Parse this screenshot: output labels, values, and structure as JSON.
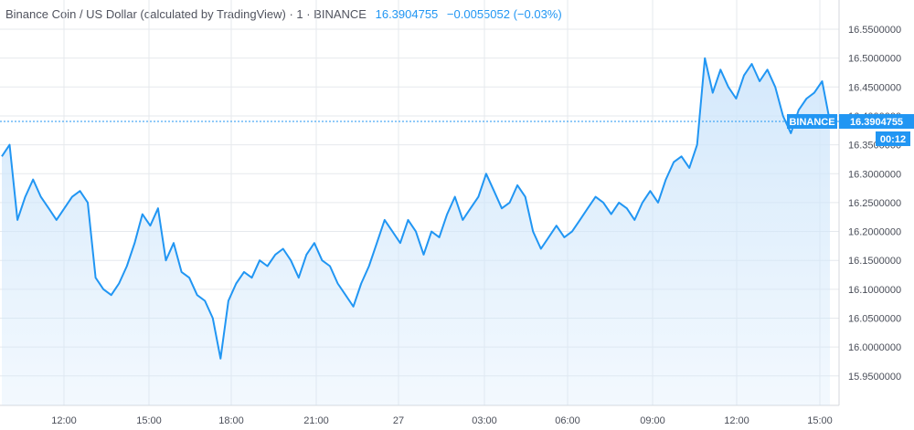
{
  "header": {
    "symbol": "Binance Coin / US Dollar (calculated by TradingView) · 1 · BINANCE",
    "last": "16.3904755",
    "change": "−0.0055052 (−0.03%)"
  },
  "price_tag": {
    "exchange": "BINANCE",
    "value": "16.3904755",
    "countdown": "00:12"
  },
  "colors": {
    "line": "#2196f3",
    "fill": "#cfe6fb",
    "tag": "#2196f3",
    "grid": "#e6e9ed"
  },
  "chart_data": {
    "type": "area",
    "x_ticks": [
      "12:00",
      "15:00",
      "18:00",
      "21:00",
      "27",
      "03:00",
      "06:00",
      "09:00",
      "12:00",
      "15:00"
    ],
    "y_ticks": [
      "16.5500000",
      "16.5000000",
      "16.4500000",
      "16.4000000",
      "16.3500000",
      "16.3000000",
      "16.2500000",
      "16.2000000",
      "16.1500000",
      "16.1000000",
      "16.0500000",
      "16.0000000",
      "15.9500000"
    ],
    "ylim": [
      15.925,
      16.575
    ],
    "last_value": 16.3904755,
    "series": [
      {
        "values": [
          16.33,
          16.35,
          16.22,
          16.26,
          16.29,
          16.26,
          16.24,
          16.22,
          16.24,
          16.26,
          16.27,
          16.25,
          16.12,
          16.1,
          16.09,
          16.11,
          16.14,
          16.18,
          16.23,
          16.21,
          16.24,
          16.15,
          16.18,
          16.13,
          16.12,
          16.09,
          16.08,
          16.05,
          15.98,
          16.08,
          16.11,
          16.13,
          16.12,
          16.15,
          16.14,
          16.16,
          16.17,
          16.15,
          16.12,
          16.16,
          16.18,
          16.15,
          16.14,
          16.11,
          16.09,
          16.07,
          16.11,
          16.14,
          16.18,
          16.22,
          16.2,
          16.18,
          16.22,
          16.2,
          16.16,
          16.2,
          16.19,
          16.23,
          16.26,
          16.22,
          16.24,
          16.26,
          16.3,
          16.27,
          16.24,
          16.25,
          16.28,
          16.26,
          16.2,
          16.17,
          16.19,
          16.21,
          16.19,
          16.2,
          16.22,
          16.24,
          16.26,
          16.25,
          16.23,
          16.25,
          16.24,
          16.22,
          16.25,
          16.27,
          16.25,
          16.29,
          16.32,
          16.33,
          16.31,
          16.35,
          16.5,
          16.44,
          16.48,
          16.45,
          16.43,
          16.47,
          16.49,
          16.46,
          16.48,
          16.45,
          16.4,
          16.37,
          16.41,
          16.43,
          16.44,
          16.46,
          16.39
        ]
      }
    ]
  }
}
